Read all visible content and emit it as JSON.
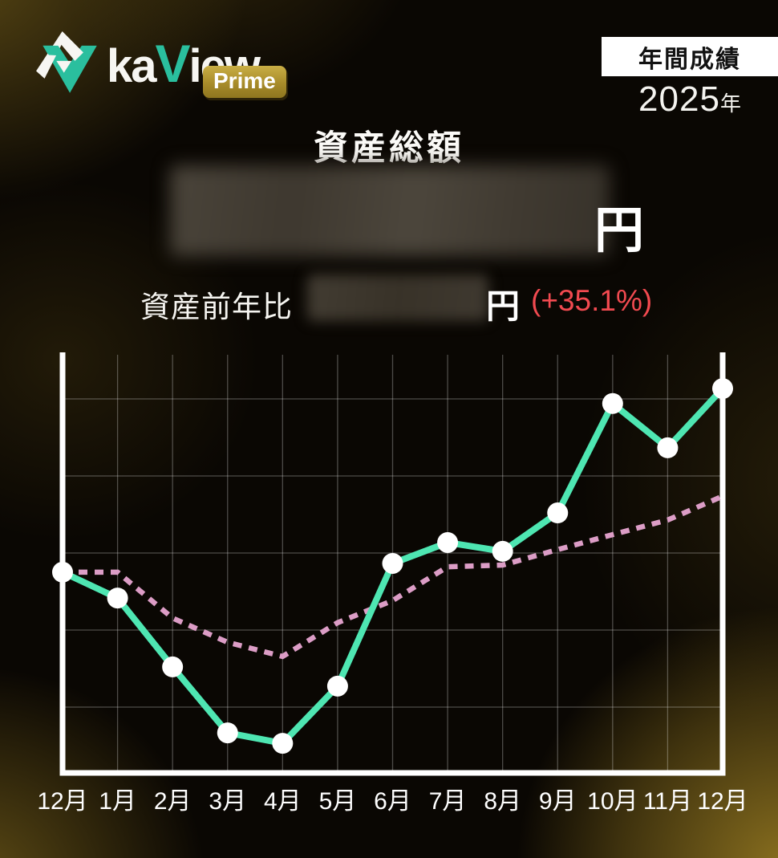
{
  "app": {
    "name_part1": "ka",
    "name_accent": "V",
    "name_part2": "iew",
    "badge": "Prime"
  },
  "header": {
    "period_badge": "年間成績",
    "year": "2025",
    "year_unit": "年"
  },
  "summary": {
    "title": "資産総額",
    "total_unit": "円",
    "total_value_redacted": true,
    "yoy_label": "資産前年比",
    "yoy_unit": "円",
    "yoy_change": "(+35.1%)",
    "yoy_value_redacted": true
  },
  "colors": {
    "line_solid": "#4ee6b2",
    "line_dotted": "#dc9dc6",
    "marker": "#ffffff",
    "change_positive_red": "#f24a50",
    "axis_white": "#ffffff",
    "grid": "rgba(255,255,255,0.28)",
    "prime_gold": "#a88c2a",
    "logo_teal": "#2abf9e"
  },
  "chart_data": {
    "type": "line",
    "title": "",
    "xlabel": "",
    "ylabel": "",
    "categories": [
      "12月",
      "1月",
      "2月",
      "3月",
      "4月",
      "5月",
      "6月",
      "7月",
      "8月",
      "9月",
      "10月",
      "11月",
      "12月"
    ],
    "ylim": [
      0,
      100
    ],
    "grid": true,
    "legend": false,
    "note": "y-axis has no tick labels; values estimated as percent of plot height",
    "series": [
      {
        "name": "solid_green_with_markers",
        "style": "solid",
        "color": "#4ee6b2",
        "values_pct": [
          48.1,
          41.9,
          25.4,
          9.6,
          7.1,
          20.8,
          50.2,
          55.2,
          53.1,
          62.3,
          88.5,
          77.9,
          92.1
        ]
      },
      {
        "name": "dotted_pink",
        "style": "dotted",
        "color": "#dc9dc6",
        "values_pct": [
          48.1,
          48.1,
          37.1,
          31.3,
          27.9,
          36.0,
          41.3,
          49.4,
          49.8,
          53.5,
          57.1,
          60.6,
          66.3
        ]
      }
    ]
  }
}
